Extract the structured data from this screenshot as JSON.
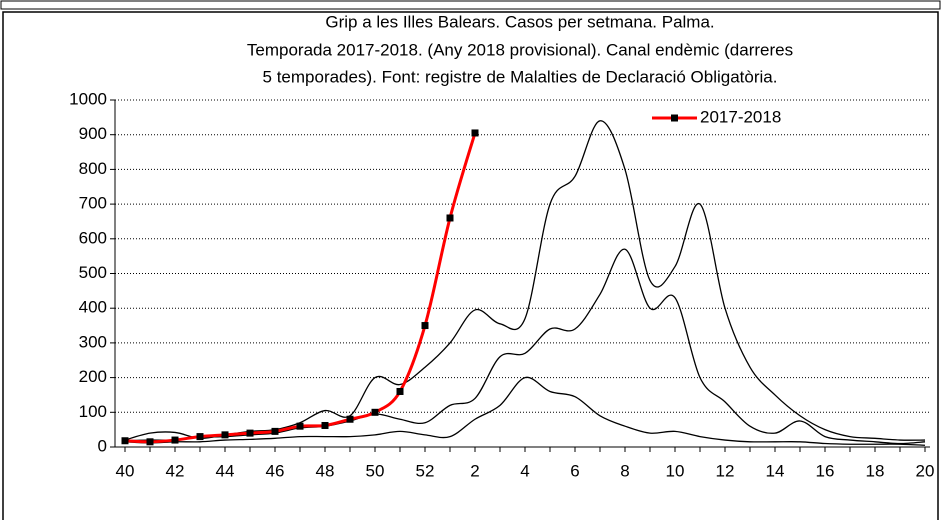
{
  "chart_data": {
    "type": "line",
    "title": [
      "Grip a les Illes Balears. Casos per setmana. Palma.",
      "Temporada 2017-2018.  (Any 2018 provisional). Canal endèmic (darreres",
      "5 temporades). Font: registre de Malalties de Declaració Obligatòria."
    ],
    "categories": [
      "40",
      null,
      "42",
      null,
      "44",
      null,
      "46",
      null,
      "48",
      null,
      "50",
      null,
      "52",
      null,
      "2",
      null,
      "4",
      null,
      "6",
      null,
      "8",
      null,
      "10",
      null,
      "12",
      null,
      "14",
      null,
      "16",
      null,
      "18",
      null,
      "20"
    ],
    "series": [
      {
        "color": "#000000",
        "values": [
          20,
          40,
          42,
          25,
          35,
          45,
          50,
          70,
          105,
          90,
          200,
          180,
          230,
          300,
          395,
          355,
          370,
          700,
          780,
          940,
          800,
          480,
          520,
          700,
          400,
          230,
          150,
          90,
          50,
          30,
          25,
          20,
          20
        ]
      },
      {
        "color": "#000000",
        "values": [
          18,
          20,
          20,
          28,
          30,
          35,
          40,
          55,
          60,
          75,
          95,
          80,
          70,
          120,
          140,
          260,
          270,
          340,
          340,
          440,
          570,
          400,
          430,
          200,
          130,
          60,
          40,
          75,
          30,
          20,
          15,
          10,
          15
        ]
      },
      {
        "color": "#000000",
        "values": [
          15,
          12,
          15,
          15,
          20,
          22,
          25,
          30,
          30,
          30,
          35,
          45,
          35,
          30,
          80,
          120,
          200,
          160,
          145,
          90,
          60,
          40,
          45,
          30,
          20,
          15,
          15,
          15,
          10,
          8,
          8,
          8,
          5
        ]
      },
      {
        "name": "2017-2018",
        "color": "#ff0000",
        "values": [
          18,
          15,
          20,
          30,
          35,
          40,
          45,
          60,
          62,
          80,
          100,
          160,
          350,
          660,
          905,
          null,
          null,
          null,
          null,
          null,
          null,
          null,
          null,
          null,
          null,
          null,
          null,
          null,
          null,
          null,
          null,
          null,
          null
        ]
      }
    ],
    "ylim": [
      0,
      1000
    ],
    "yticks": [
      0,
      100,
      200,
      300,
      400,
      500,
      600,
      700,
      800,
      900,
      1000
    ],
    "grid": true,
    "legend": "upper right"
  }
}
